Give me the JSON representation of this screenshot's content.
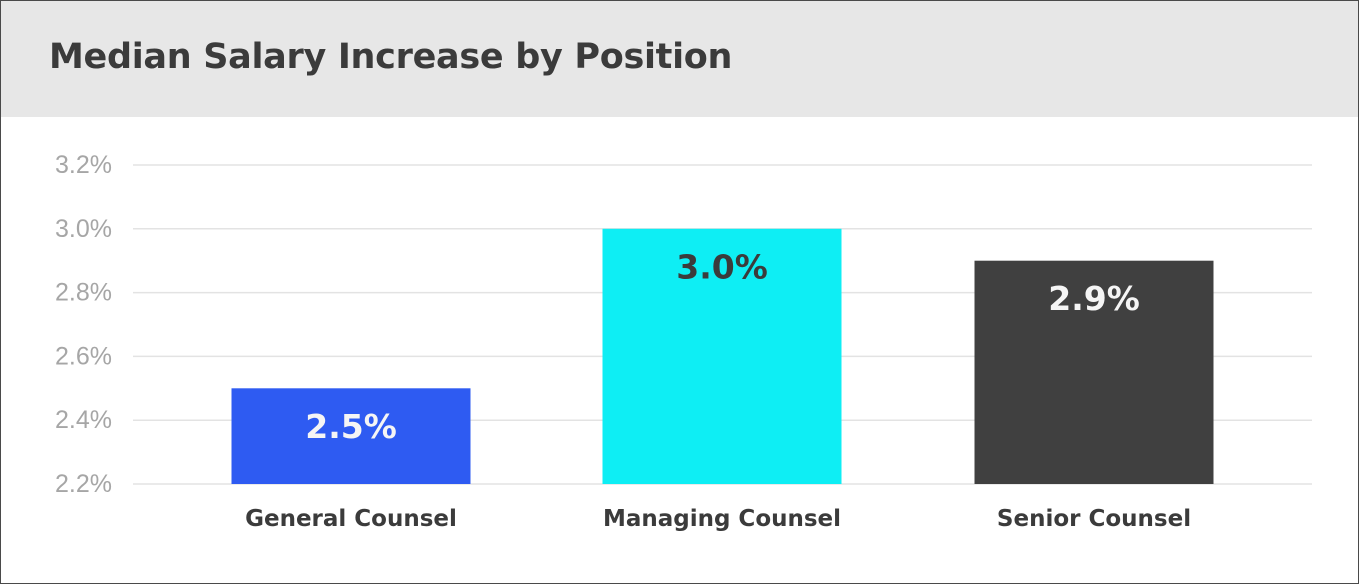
{
  "chart_data": {
    "type": "bar",
    "title": "Median Salary Increase by Position",
    "xlabel": "",
    "ylabel": "",
    "categories": [
      "General Counsel",
      "Managing Counsel",
      "Senior Counsel"
    ],
    "values": [
      2.5,
      3.0,
      2.9
    ],
    "value_labels": [
      "2.5%",
      "3.0%",
      "2.9%"
    ],
    "bar_colors": [
      "#2e5bf2",
      "#0eeef4",
      "#404040"
    ],
    "label_colors": [
      "#f5f5f5",
      "#3b3b3b",
      "#f5f5f5"
    ],
    "ylim": [
      2.2,
      3.2
    ],
    "yticks": [
      2.2,
      2.4,
      2.6,
      2.8,
      3.0,
      3.2
    ],
    "ytick_labels": [
      "2.2%",
      "2.4%",
      "2.6%",
      "2.8%",
      "3.0%",
      "3.2%"
    ],
    "grid": true,
    "legend": "none"
  }
}
